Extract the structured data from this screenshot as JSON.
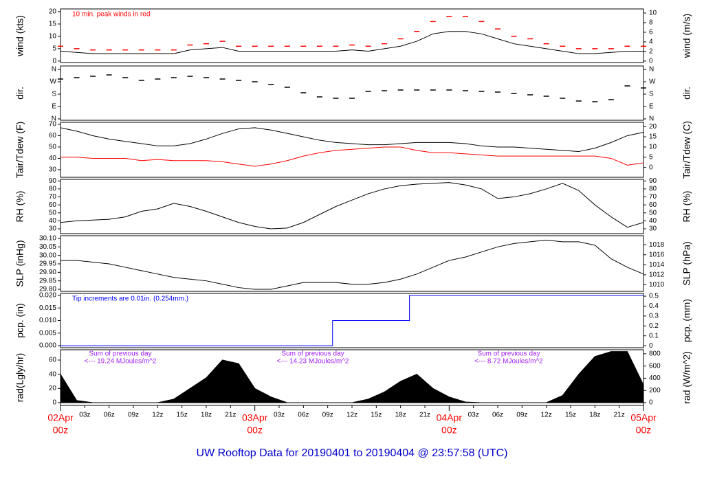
{
  "title": "UW Rooftop Data for 20190401  to  20190404 @ 23:57:58  (UTC)",
  "x_axis": {
    "xlim": [
      0,
      72
    ],
    "xticks": [
      {
        "value": 3,
        "label": "03z"
      },
      {
        "value": 6,
        "label": "06z"
      },
      {
        "value": 9,
        "label": "09z"
      },
      {
        "value": 12,
        "label": "12z"
      },
      {
        "value": 15,
        "label": "15z"
      },
      {
        "value": 18,
        "label": "18z"
      },
      {
        "value": 21,
        "label": "21z"
      },
      {
        "value": 27,
        "label": "03z"
      },
      {
        "value": 30,
        "label": "06z"
      },
      {
        "value": 33,
        "label": "09z"
      },
      {
        "value": 36,
        "label": "12z"
      },
      {
        "value": 39,
        "label": "15z"
      },
      {
        "value": 42,
        "label": "18z"
      },
      {
        "value": 45,
        "label": "21z"
      },
      {
        "value": 51,
        "label": "03z"
      },
      {
        "value": 54,
        "label": "06z"
      },
      {
        "value": 57,
        "label": "09z"
      },
      {
        "value": 60,
        "label": "12z"
      },
      {
        "value": 63,
        "label": "15z"
      },
      {
        "value": 66,
        "label": "18z"
      },
      {
        "value": 69,
        "label": "21z"
      }
    ],
    "date_labels": [
      {
        "value": 0,
        "label": "02Apr",
        "sub": "00z"
      },
      {
        "value": 24,
        "label": "03Apr",
        "sub": "00z"
      },
      {
        "value": 48,
        "label": "04Apr",
        "sub": "00z"
      },
      {
        "value": 72,
        "label": "05Apr",
        "sub": "00z"
      }
    ],
    "color": "#ff0000"
  },
  "chart_data": [
    {
      "type": "line",
      "ylabel": "wind (kts)",
      "y2label": "wind (m/s)",
      "annotation": "10 min. peak winds in red",
      "annotation_color": "#ff0000",
      "ylim": [
        -0.6,
        21.1
      ],
      "yticks": [
        0,
        5,
        10,
        15,
        20
      ],
      "y2lim": [
        -0.3,
        10.85
      ],
      "y2ticks": [
        0,
        2,
        4,
        6,
        8,
        10
      ],
      "x": [
        0,
        2,
        4,
        6,
        8,
        10,
        12,
        14,
        16,
        18,
        20,
        22,
        24,
        26,
        28,
        30,
        32,
        34,
        36,
        38,
        40,
        42,
        44,
        46,
        48,
        50,
        52,
        54,
        56,
        58,
        60,
        62,
        64,
        66,
        68,
        70,
        72
      ],
      "series": [
        {
          "name": "wind",
          "color": "#000000",
          "style": "line",
          "values": [
            4,
            3.5,
            3,
            3,
            3,
            3,
            3,
            3,
            4.5,
            5,
            5.5,
            4,
            4,
            4,
            4,
            4,
            4,
            4,
            4.5,
            4,
            5,
            6,
            8,
            11,
            12,
            12,
            11,
            9,
            7,
            6,
            5,
            4,
            3,
            3,
            3.5,
            4,
            4
          ]
        },
        {
          "name": "peak",
          "color": "#ff0000",
          "style": "dash",
          "values": [
            6,
            5,
            4.5,
            4.5,
            4.5,
            4.5,
            4.5,
            4.5,
            6.5,
            7,
            8,
            6,
            6,
            6,
            6,
            6,
            6,
            6,
            6.5,
            6,
            7,
            9,
            12,
            16,
            18,
            18,
            16,
            13,
            10,
            9,
            7,
            6,
            5,
            5,
            5,
            6,
            6
          ]
        }
      ]
    },
    {
      "type": "line",
      "ylabel": "dir.",
      "y2label": "dir.",
      "ylim": [
        -10,
        385
      ],
      "yticks": [
        {
          "value": 360,
          "label": "N"
        },
        {
          "value": 270,
          "label": "W"
        },
        {
          "value": 180,
          "label": "S"
        },
        {
          "value": 90,
          "label": "E"
        },
        {
          "value": 0,
          "label": "N"
        }
      ],
      "y2lim": [
        -10,
        385
      ],
      "y2ticks": [
        {
          "value": 360,
          "label": "N"
        },
        {
          "value": 270,
          "label": "W"
        },
        {
          "value": 180,
          "label": "S"
        },
        {
          "value": 90,
          "label": "E"
        },
        {
          "value": 0,
          "label": "N"
        }
      ],
      "x": [
        0,
        2,
        4,
        6,
        8,
        10,
        12,
        14,
        16,
        18,
        20,
        22,
        24,
        26,
        28,
        30,
        32,
        34,
        36,
        38,
        40,
        42,
        44,
        46,
        48,
        50,
        52,
        54,
        56,
        58,
        60,
        62,
        64,
        66,
        68,
        70,
        72
      ],
      "series": [
        {
          "name": "direction",
          "color": "#000000",
          "style": "dash",
          "values": [
            290,
            300,
            310,
            320,
            300,
            280,
            290,
            300,
            310,
            300,
            290,
            280,
            270,
            250,
            230,
            190,
            160,
            150,
            150,
            200,
            205,
            210,
            210,
            210,
            210,
            205,
            200,
            195,
            185,
            175,
            165,
            150,
            130,
            125,
            140,
            240,
            225
          ]
        }
      ]
    },
    {
      "type": "line",
      "ylabel": "Tair/Tdew (F)",
      "y2label": "Tair/Tdew (C)",
      "ylim": [
        23.3,
        71.8
      ],
      "yticks": [
        30,
        40,
        50,
        60,
        70
      ],
      "y2lim": [
        -4.83,
        22.1
      ],
      "y2ticks": [
        0,
        5,
        10,
        15,
        20
      ],
      "x": [
        0,
        2,
        4,
        6,
        8,
        10,
        12,
        14,
        16,
        18,
        20,
        22,
        24,
        26,
        28,
        30,
        32,
        34,
        36,
        38,
        40,
        42,
        44,
        46,
        48,
        50,
        52,
        54,
        56,
        58,
        60,
        62,
        64,
        66,
        68,
        70,
        72
      ],
      "series": [
        {
          "name": "Tair",
          "color": "#000000",
          "style": "line",
          "values": [
            67,
            64,
            60,
            57,
            55,
            53,
            51,
            51,
            53,
            57,
            62,
            66,
            67,
            65,
            62,
            59,
            56,
            54,
            53,
            52,
            52,
            53,
            54,
            54,
            54,
            53,
            51,
            50,
            50,
            49,
            48,
            47,
            46,
            49,
            54,
            60,
            63
          ]
        },
        {
          "name": "Tdew",
          "color": "#ff0000",
          "style": "line",
          "values": [
            41,
            41,
            40,
            40,
            40,
            38,
            39,
            38,
            38,
            38,
            37,
            35,
            33,
            35,
            38,
            42,
            45,
            47,
            48,
            49,
            50,
            50,
            47,
            45,
            45,
            44,
            43,
            42,
            42,
            42,
            42,
            42,
            42,
            42,
            40,
            34,
            36
          ]
        }
      ]
    },
    {
      "type": "line",
      "ylabel": "RH (%)",
      "y2label": "RH (%)",
      "ylim": [
        24,
        92
      ],
      "yticks": [
        30,
        40,
        50,
        60,
        70,
        80,
        90
      ],
      "y2lim": [
        24,
        92
      ],
      "y2ticks": [
        30,
        40,
        50,
        60,
        70,
        80,
        90
      ],
      "x": [
        0,
        2,
        4,
        6,
        8,
        10,
        12,
        14,
        16,
        18,
        20,
        22,
        24,
        26,
        28,
        30,
        32,
        34,
        36,
        38,
        40,
        42,
        44,
        46,
        48,
        50,
        52,
        54,
        56,
        58,
        60,
        62,
        64,
        66,
        68,
        70,
        72
      ],
      "series": [
        {
          "name": "RH",
          "color": "#000000",
          "style": "line",
          "values": [
            38,
            40,
            41,
            42,
            45,
            52,
            55,
            62,
            58,
            52,
            45,
            38,
            33,
            30,
            31,
            38,
            48,
            58,
            66,
            74,
            80,
            84,
            86,
            87,
            88,
            85,
            80,
            68,
            70,
            74,
            80,
            87,
            78,
            60,
            45,
            32,
            38
          ]
        }
      ]
    },
    {
      "type": "line",
      "ylabel": "SLP (inHg)",
      "y2label": "SLP (hPa)",
      "ylim": [
        29.788,
        30.116
      ],
      "yticks": [
        {
          "value": 29.8,
          "label": "29.80"
        },
        29.85,
        {
          "value": 29.9,
          "label": "29.90"
        },
        29.95,
        {
          "value": 30,
          "label": "30.00"
        },
        30.05,
        {
          "value": 30.1,
          "label": "30.10"
        }
      ],
      "y2lim": [
        1008.7,
        1019.8
      ],
      "y2ticks": [
        1010,
        1012,
        1014,
        1016,
        1018
      ],
      "x": [
        0,
        2,
        4,
        6,
        8,
        10,
        12,
        14,
        16,
        18,
        20,
        22,
        24,
        26,
        28,
        30,
        32,
        34,
        36,
        38,
        40,
        42,
        44,
        46,
        48,
        50,
        52,
        54,
        56,
        58,
        60,
        62,
        64,
        66,
        68,
        70,
        72
      ],
      "series": [
        {
          "name": "SLP",
          "color": "#000000",
          "style": "line",
          "values": [
            29.97,
            29.97,
            29.96,
            29.95,
            29.93,
            29.91,
            29.89,
            29.87,
            29.86,
            29.85,
            29.83,
            29.81,
            29.8,
            29.8,
            29.82,
            29.84,
            29.84,
            29.84,
            29.83,
            29.83,
            29.84,
            29.86,
            29.89,
            29.93,
            29.97,
            29.99,
            30.02,
            30.05,
            30.07,
            30.08,
            30.09,
            30.08,
            30.08,
            30.06,
            29.98,
            29.93,
            29.89
          ]
        }
      ]
    },
    {
      "type": "step",
      "ylabel": "pcp. (in)",
      "y2label": "pcp. (mm)",
      "annotation": "Tip increments are 0.01in. (0.254mm.)",
      "annotation_color": "#0000ff",
      "ylim": [
        -0.0008,
        0.0208
      ],
      "yticks": [
        {
          "value": 0,
          "label": "0.000"
        },
        0.005,
        {
          "value": 0.01,
          "label": "0.010"
        },
        0.015,
        {
          "value": 0.02,
          "label": "0.020"
        }
      ],
      "y2lim": [
        -0.02,
        0.528
      ],
      "y2ticks": [
        0,
        0.1,
        0.2,
        0.3,
        0.4,
        0.5
      ],
      "x": [
        0,
        33.6,
        43.1,
        72
      ],
      "series": [
        {
          "name": "pcp",
          "color": "#0000ff",
          "style": "line",
          "values": [
            0,
            0.01,
            0.02,
            0.02
          ]
        }
      ]
    },
    {
      "type": "area",
      "ylabel": "rad(Lgly/hr)",
      "y2label": "rad (W/m^2)",
      "ylim": [
        -3.9,
        74.5
      ],
      "yticks": [
        0,
        20,
        40,
        60
      ],
      "y2lim": [
        -45,
        866
      ],
      "y2ticks": [
        0,
        200,
        400,
        600,
        800
      ],
      "notes": [
        {
          "label": "Sum of previous day",
          "sub": "<--- 19.24 MJoules/m^2"
        },
        {
          "label": "Sum of previous day",
          "sub": "<--- 14.23 MJoules/m^2"
        },
        {
          "label": "Sum of previous day",
          "sub": "<--- 8.72 MJoules/m^2"
        }
      ],
      "notes_color": "#a020f0",
      "x": [
        0,
        2,
        4,
        6,
        8,
        10,
        12,
        14,
        16,
        18,
        20,
        22,
        24,
        26,
        28,
        30,
        32,
        34,
        36,
        38,
        40,
        42,
        44,
        46,
        48,
        50,
        52,
        54,
        56,
        58,
        60,
        62,
        64,
        66,
        68,
        70,
        72
      ],
      "series": [
        {
          "name": "rad",
          "color": "#000000",
          "style": "area",
          "values": [
            40,
            3,
            0,
            0,
            0,
            0,
            0,
            5,
            20,
            35,
            60,
            55,
            20,
            8,
            0,
            0,
            0,
            0,
            0,
            5,
            15,
            30,
            40,
            20,
            8,
            1,
            0,
            0,
            0,
            0,
            0,
            10,
            40,
            65,
            72,
            72,
            25
          ]
        }
      ]
    }
  ]
}
